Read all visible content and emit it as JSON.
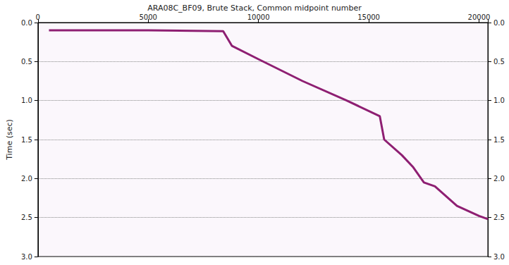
{
  "chart_data": {
    "type": "line",
    "title": "ARA08C_BF09, Brute Stack, Common midpoint number",
    "y_label": "Time (sec)",
    "x": [
      500,
      5000,
      8400,
      8800,
      10000,
      12000,
      14000,
      15500,
      15700,
      16500,
      17000,
      17500,
      18000,
      19000,
      20000,
      20400
    ],
    "values": [
      0.1,
      0.1,
      0.11,
      0.3,
      0.47,
      0.75,
      1.0,
      1.2,
      1.5,
      1.7,
      1.85,
      2.05,
      2.1,
      2.35,
      2.48,
      2.52
    ],
    "color": "#8e1f72",
    "line_style": "solid",
    "xlim": [
      0,
      20400
    ],
    "xticks": [
      0,
      5000,
      10000,
      15000,
      20000
    ],
    "ylim": [
      0,
      3
    ],
    "yticks": [
      {
        "value": 0,
        "label": "0.0"
      },
      0.5,
      {
        "value": 1,
        "label": "1.0"
      },
      1.5,
      {
        "value": 2,
        "label": "2.0"
      },
      2.5,
      {
        "value": 3,
        "label": "3.0"
      }
    ],
    "y2lim": [
      0,
      3
    ],
    "y2ticks": [
      {
        "value": 0,
        "label": "0.0"
      },
      0.5,
      {
        "value": 1,
        "label": "1.0"
      },
      1.5,
      {
        "value": 2,
        "label": "2.0"
      },
      2.5,
      {
        "value": 3,
        "label": "3.0"
      }
    ],
    "grid": true
  }
}
